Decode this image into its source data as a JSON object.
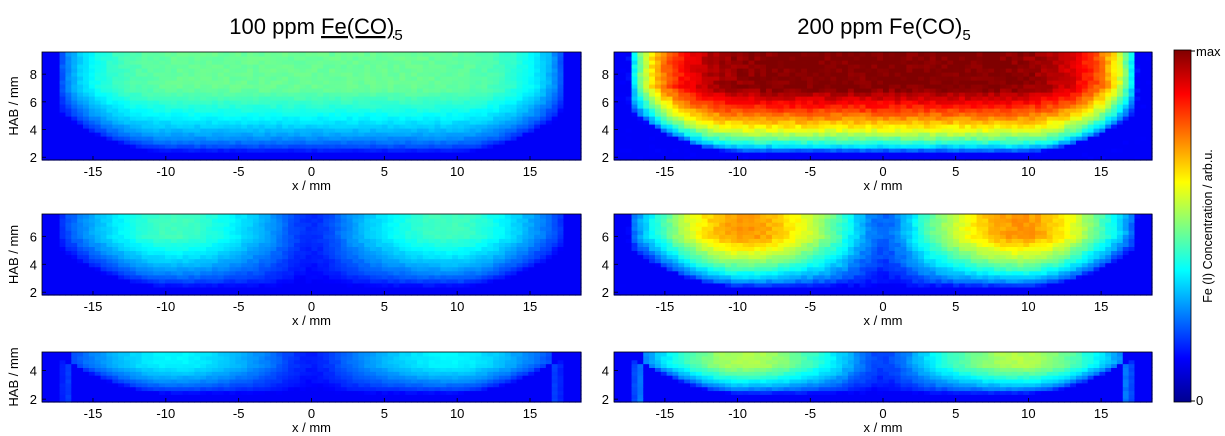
{
  "chart_data": {
    "type": "heatmap",
    "columns": [
      {
        "title_main": "100 ppm",
        "title_chem": "Fe(CO)",
        "title_sub": "5",
        "fe_concentration_ppm": 100
      },
      {
        "title_main": "200 ppm",
        "title_chem": "Fe(CO)",
        "title_sub": "5",
        "fe_concentration_ppm": 200
      }
    ],
    "xlabel": "x / mm",
    "ylabel": "HAB / mm",
    "xlim": [
      -18.5,
      18.5
    ],
    "xticks": [
      -15,
      -10,
      -5,
      0,
      5,
      10,
      15
    ],
    "colorbar": {
      "label": "Fe (I) Concentration / arb.u.",
      "min_label": "0",
      "max_label": "max",
      "colormap": "jet"
    },
    "panels": [
      {
        "row": 0,
        "col": 0,
        "ylim": [
          1.8,
          9.6
        ],
        "yticks": [
          2,
          4,
          6,
          8
        ],
        "pattern": "bowl",
        "peak": 0.42,
        "peak_hab": 7.5
      },
      {
        "row": 0,
        "col": 1,
        "ylim": [
          1.8,
          9.6
        ],
        "yticks": [
          2,
          4,
          6,
          8
        ],
        "pattern": "bowl",
        "peak": 1.0,
        "peak_hab": 7.5
      },
      {
        "row": 1,
        "col": 0,
        "ylim": [
          1.8,
          7.6
        ],
        "yticks": [
          2,
          4,
          6
        ],
        "pattern": "two-lobe",
        "peak": 0.38,
        "peak_hab": 6.2
      },
      {
        "row": 1,
        "col": 1,
        "ylim": [
          1.8,
          7.6
        ],
        "yticks": [
          2,
          4,
          6
        ],
        "pattern": "two-lobe",
        "peak": 0.7,
        "peak_hab": 6.2
      },
      {
        "row": 2,
        "col": 0,
        "ylim": [
          1.8,
          5.3
        ],
        "yticks": [
          2,
          4
        ],
        "pattern": "two-lobe",
        "peak": 0.3,
        "peak_hab": 4.5
      },
      {
        "row": 2,
        "col": 1,
        "ylim": [
          1.8,
          5.3
        ],
        "yticks": [
          2,
          4
        ],
        "pattern": "two-lobe",
        "peak": 0.5,
        "peak_hab": 4.5
      }
    ]
  }
}
